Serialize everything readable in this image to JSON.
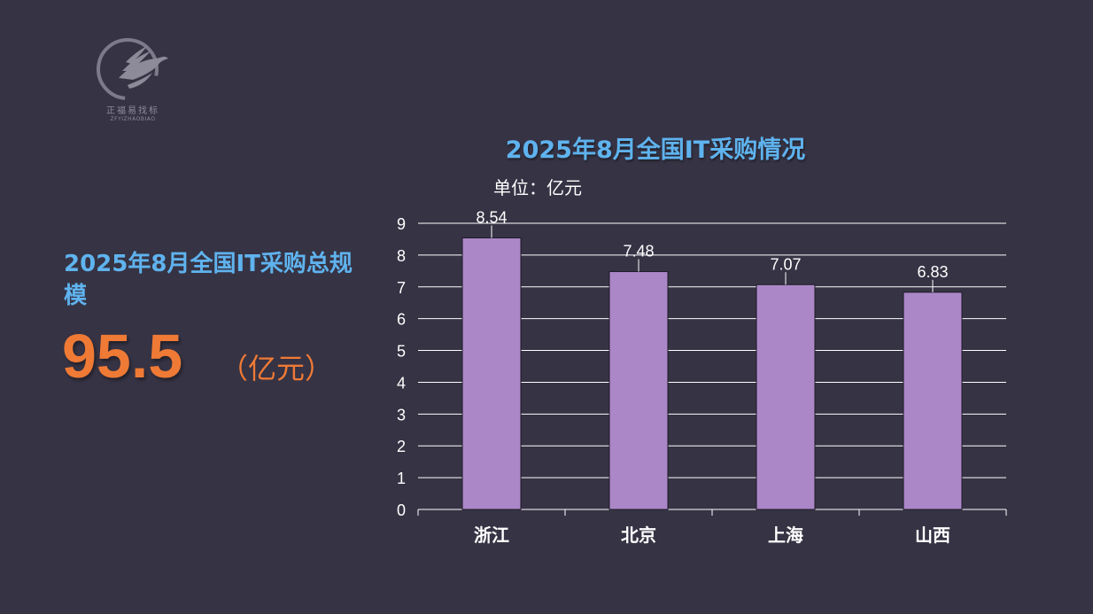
{
  "logo": {
    "text": "正福易找标",
    "subtext": "ZFYIZHAOBIAO",
    "icon": "eagle-circle-logo"
  },
  "summary": {
    "title": "2025年8月全国IT采购总规模",
    "value": "95.5",
    "unit": "（亿元）"
  },
  "colors": {
    "background": "#363344",
    "accent_blue": "#5fb3ee",
    "accent_orange": "#ef7a35",
    "bar": "#ab87c8"
  },
  "chart_data": {
    "type": "bar",
    "title": "2025年8月全国IT采购情况",
    "unit_label": "单位：亿元",
    "categories": [
      "浙江",
      "北京",
      "上海",
      "山西"
    ],
    "values": [
      8.54,
      7.48,
      7.07,
      6.83
    ],
    "value_labels": [
      "8.54",
      "7.48",
      "7.07",
      "6.83"
    ],
    "yticks": [
      "0",
      "1",
      "2",
      "3",
      "4",
      "5",
      "6",
      "7",
      "8",
      "9"
    ],
    "ylim": [
      0,
      9
    ],
    "grid": true,
    "legend": false
  }
}
